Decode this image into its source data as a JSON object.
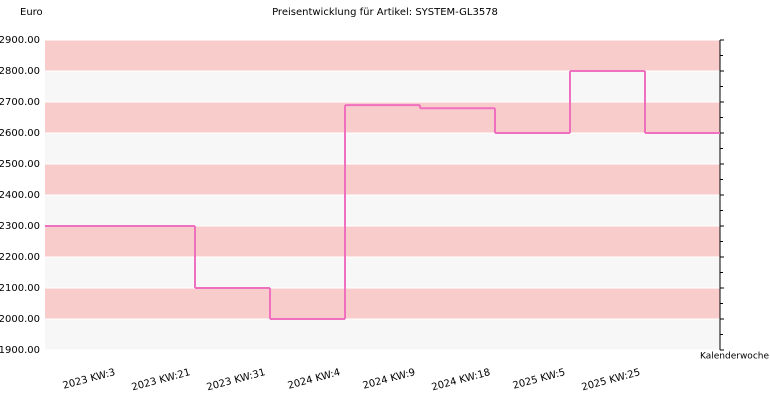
{
  "chart_data": {
    "type": "step",
    "title": "Preisentwicklung für Artikel: SYSTEM-GL3578",
    "y_label": "Euro",
    "x_label": "Kalenderwoche",
    "categories": [
      "2023 KW:3",
      "2023 KW:21",
      "2023 KW:31",
      "2024 KW:4",
      "2024 KW:9",
      "2024 KW:18",
      "2025 KW:5",
      "2025 KW:25"
    ],
    "values": [
      2300,
      2100,
      2000,
      2690,
      2680,
      2600,
      2800,
      2600
    ],
    "color": "#f070c0",
    "band_colors": [
      "#f9cccc",
      "#f7f7f7"
    ],
    "ylim": [
      1900,
      2900
    ],
    "yticks": [
      {
        "value": 1900,
        "label": "1900.00"
      },
      {
        "value": 2000,
        "label": "2000.00"
      },
      {
        "value": 2100,
        "label": "2100.00"
      },
      {
        "value": 2200,
        "label": "2200.00"
      },
      {
        "value": 2300,
        "label": "2300.00"
      },
      {
        "value": 2400,
        "label": "2400.00"
      },
      {
        "value": 2500,
        "label": "2500.00"
      },
      {
        "value": 2600,
        "label": "2600.00"
      },
      {
        "value": 2700,
        "label": "2700.00"
      },
      {
        "value": 2800,
        "label": "2800.00"
      },
      {
        "value": 2900,
        "label": "2900.00"
      }
    ],
    "grid": true
  }
}
